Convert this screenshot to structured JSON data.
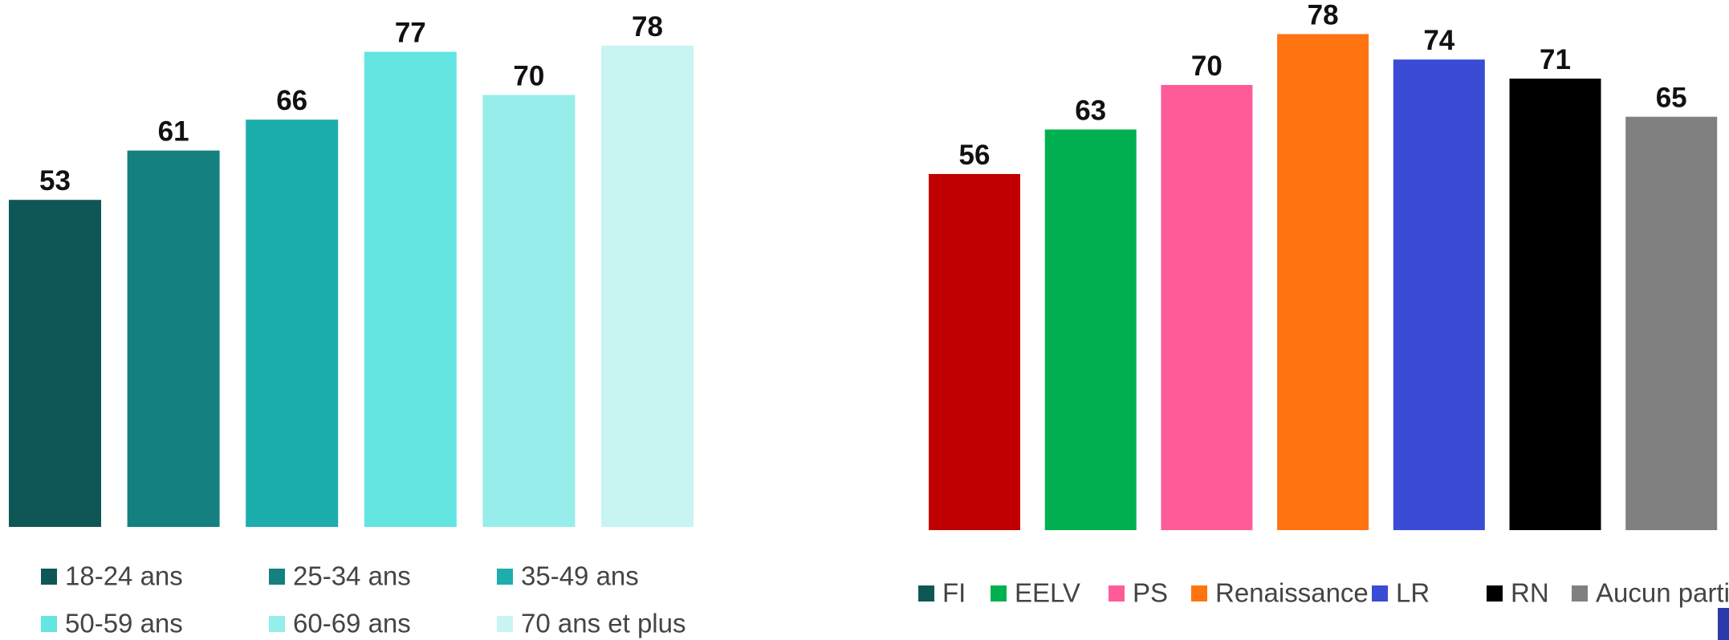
{
  "chart_data": [
    {
      "type": "bar",
      "categories": [
        "18-24 ans",
        "25-34 ans",
        "35-49 ans",
        "50-59 ans",
        "60-69 ans",
        "70 ans et plus"
      ],
      "values": [
        53,
        61,
        66,
        77,
        70,
        78
      ],
      "colors": [
        "#0f5757",
        "#148080",
        "#1cadad",
        "#63e5e2",
        "#96ede9",
        "#c8f4f2"
      ],
      "ylim": [
        0,
        85
      ]
    },
    {
      "type": "bar",
      "categories": [
        "FI",
        "EELV",
        "PS",
        "Renaissance",
        "LR",
        "RN",
        "Aucun parti"
      ],
      "values": [
        56,
        63,
        70,
        78,
        74,
        71,
        65
      ],
      "colors": [
        "#c00000",
        "#00b050",
        "#ff5b99",
        "#ff7410",
        "#3a4bd5",
        "#000000",
        "#808080"
      ],
      "legend_colors": [
        "#0f5757",
        "#00b050",
        "#ff5b99",
        "#ff7410",
        "#3a4bd5",
        "#000000",
        "#808080"
      ],
      "ylim": [
        0,
        85
      ]
    }
  ]
}
